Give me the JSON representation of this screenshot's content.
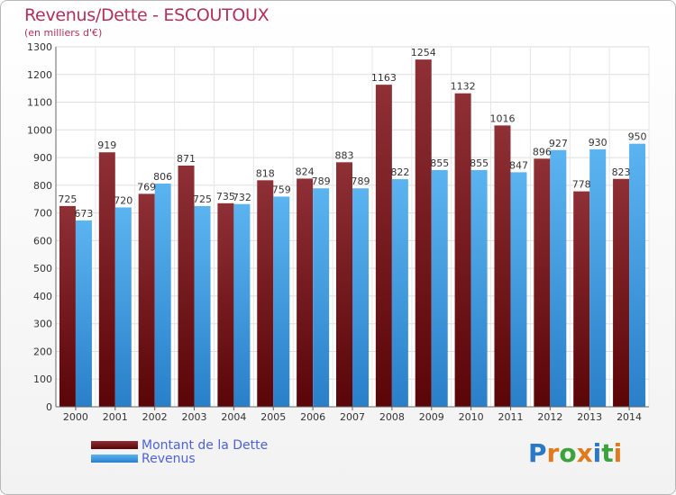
{
  "title": "Revenus/Dette - ESCOUTOUX",
  "subtitle": "(en milliers d'€)",
  "legend": [
    {
      "label": "Montant de la Dette",
      "color": "#7a1a1e"
    },
    {
      "label": "Revenus",
      "color": "#4aa3e8"
    }
  ],
  "logo": {
    "text": "Proxiti",
    "letters": [
      "P",
      "r",
      "o",
      "x",
      "i",
      "t",
      "i"
    ],
    "colors": [
      "#2b78c6",
      "#e07a1f",
      "#3ca23c",
      "#e07a1f",
      "#2b78c6",
      "#3ca23c",
      "#e07a1f"
    ]
  },
  "chart_data": {
    "type": "bar",
    "categories": [
      "2000",
      "2001",
      "2002",
      "2003",
      "2004",
      "2005",
      "2006",
      "2007",
      "2008",
      "2009",
      "2010",
      "2011",
      "2012",
      "2013",
      "2014"
    ],
    "series": [
      {
        "name": "Montant de la Dette",
        "color": "#7a1a1e",
        "values": [
          725,
          919,
          769,
          871,
          735,
          818,
          824,
          883,
          1163,
          1254,
          1132,
          1016,
          896,
          778,
          823
        ]
      },
      {
        "name": "Revenus",
        "color": "#4aa3e8",
        "values": [
          673,
          720,
          806,
          725,
          732,
          759,
          789,
          789,
          822,
          855,
          855,
          847,
          927,
          930,
          950
        ]
      }
    ],
    "ylim": [
      0,
      1300
    ],
    "yticks": [
      0,
      100,
      200,
      300,
      400,
      500,
      600,
      700,
      800,
      900,
      1000,
      1100,
      1200,
      1300
    ],
    "grid": true
  }
}
